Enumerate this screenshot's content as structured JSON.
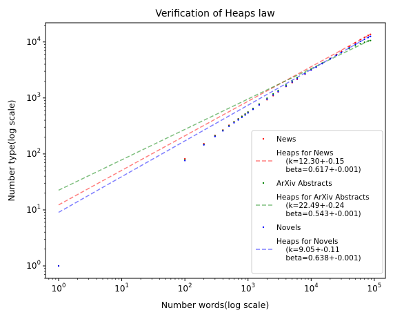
{
  "chart_data": {
    "type": "scatter",
    "title": "Verification of Heaps law",
    "xlabel": "Number words(log scale)",
    "ylabel": "Number type(log scale)",
    "xscale": "log",
    "yscale": "log",
    "xlim": [
      0.62,
      150000
    ],
    "ylim": [
      0.6,
      22000
    ],
    "xticks": [
      {
        "value": 1,
        "base": "10",
        "exp": "0"
      },
      {
        "value": 10,
        "base": "10",
        "exp": "1"
      },
      {
        "value": 100,
        "base": "10",
        "exp": "2"
      },
      {
        "value": 1000,
        "base": "10",
        "exp": "3"
      },
      {
        "value": 10000,
        "base": "10",
        "exp": "4"
      },
      {
        "value": 100000,
        "base": "10",
        "exp": "5"
      }
    ],
    "yticks": [
      {
        "value": 1,
        "base": "10",
        "exp": "0"
      },
      {
        "value": 10,
        "base": "10",
        "exp": "1"
      },
      {
        "value": 100,
        "base": "10",
        "exp": "2"
      },
      {
        "value": 1000,
        "base": "10",
        "exp": "3"
      },
      {
        "value": 10000,
        "base": "10",
        "exp": "4"
      }
    ],
    "grid": false,
    "legend_position": "lower-right",
    "series": [
      {
        "name": "News",
        "kind": "points",
        "color": "#ff0000",
        "x": [
          1,
          100,
          200,
          300,
          400,
          500,
          600,
          700,
          800,
          900,
          1000,
          1200,
          1500,
          2000,
          2500,
          3000,
          4000,
          5000,
          6000,
          8000,
          10000,
          12000,
          15000,
          20000,
          25000,
          30000,
          40000,
          50000,
          60000,
          70000,
          80000,
          87000
        ],
        "y": [
          1,
          82,
          152,
          215,
          268,
          325,
          376,
          425,
          470,
          516,
          560,
          640,
          760,
          930,
          1100,
          1280,
          1600,
          1880,
          2150,
          2650,
          3150,
          3550,
          4150,
          5100,
          6000,
          6850,
          8300,
          9700,
          11000,
          12100,
          13100,
          13700
        ]
      },
      {
        "name": "Heaps for News\n    (k=12.30+-0.15\n    beta=0.617+-0.001)",
        "kind": "fit",
        "color": "#ff0000",
        "k": 12.3,
        "beta": 0.617,
        "x_range": [
          1,
          87000
        ]
      },
      {
        "name": "ArXiv Abstracts",
        "kind": "points",
        "color": "#008000",
        "x": [
          1,
          100,
          200,
          300,
          400,
          500,
          600,
          700,
          800,
          900,
          1000,
          1200,
          1500,
          2000,
          2500,
          3000,
          4000,
          5000,
          6000,
          8000,
          10000,
          12000,
          15000,
          20000,
          25000,
          30000,
          40000,
          50000,
          60000,
          70000,
          80000,
          87000
        ],
        "y": [
          1,
          78,
          148,
          210,
          265,
          320,
          372,
          420,
          468,
          515,
          560,
          650,
          780,
          990,
          1180,
          1360,
          1700,
          2000,
          2280,
          2800,
          3250,
          3650,
          4200,
          5050,
          5800,
          6450,
          7600,
          8550,
          9300,
          9900,
          10400,
          10600
        ]
      },
      {
        "name": "Heaps for ArXiv Abstracts\n    (k=22.49+-0.24\n    beta=0.543+-0.001)",
        "kind": "fit",
        "color": "#008000",
        "k": 22.49,
        "beta": 0.543,
        "x_range": [
          1,
          87000
        ]
      },
      {
        "name": "Novels",
        "kind": "points",
        "color": "#0000ff",
        "x": [
          1,
          100,
          200,
          300,
          400,
          500,
          600,
          700,
          800,
          900,
          1000,
          1200,
          1500,
          2000,
          2500,
          3000,
          4000,
          5000,
          6000,
          8000,
          10000,
          12000,
          15000,
          20000,
          25000,
          30000,
          40000,
          50000,
          60000,
          70000,
          80000,
          87000
        ],
        "y": [
          1,
          76,
          145,
          205,
          258,
          312,
          360,
          405,
          450,
          495,
          540,
          625,
          750,
          950,
          1130,
          1300,
          1620,
          1920,
          2200,
          2700,
          3150,
          3550,
          4100,
          5000,
          5800,
          6500,
          7900,
          9100,
          10200,
          11200,
          12000,
          12600
        ]
      },
      {
        "name": "Heaps for Novels\n    (k=9.05+-0.11\n    beta=0.638+-0.001)",
        "kind": "fit",
        "color": "#0000ff",
        "k": 9.05,
        "beta": 0.638,
        "x_range": [
          1,
          87000
        ]
      }
    ]
  }
}
